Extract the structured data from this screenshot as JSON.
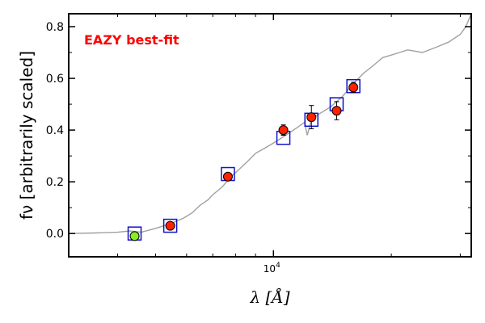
{
  "chart_data": {
    "type": "scatter",
    "title": "",
    "xlabel": "λ [Å]",
    "ylabel": "fν [arbitrarily scaled]",
    "x_scale": "log",
    "xlim": [
      3000,
      32000
    ],
    "ylim": [
      -0.09,
      0.85
    ],
    "x_tick_labels": [
      {
        "value": 10000,
        "label": "10",
        "sup": "4"
      }
    ],
    "y_ticks": [
      0.0,
      0.2,
      0.4,
      0.6,
      0.8
    ],
    "y_tick_labels": [
      "0.0",
      "0.2",
      "0.4",
      "0.6",
      "0.8"
    ],
    "annotation": {
      "text": "EAZY best-fit",
      "color": "#ff0000"
    },
    "colors": {
      "spectrum": "#a0a0a0",
      "photometry": "#ff2200",
      "green_point": "#88ee22",
      "model_box": "#1111cc"
    },
    "observed_points": [
      {
        "x": 4420,
        "y": -0.01,
        "err": 0.01,
        "color": "#88ee22"
      },
      {
        "x": 5450,
        "y": 0.03,
        "err": 0.01,
        "color": "#ff2200"
      },
      {
        "x": 7650,
        "y": 0.22,
        "err": 0.012,
        "color": "#ff2200"
      },
      {
        "x": 10600,
        "y": 0.4,
        "err": 0.02,
        "color": "#ff2200"
      },
      {
        "x": 12500,
        "y": 0.45,
        "err": 0.045,
        "color": "#ff2200"
      },
      {
        "x": 14500,
        "y": 0.475,
        "err": 0.035,
        "color": "#ff2200"
      },
      {
        "x": 16000,
        "y": 0.565,
        "err": 0.02,
        "color": "#ff2200"
      }
    ],
    "model_points": [
      {
        "x": 4420,
        "y": 0.0
      },
      {
        "x": 5450,
        "y": 0.03
      },
      {
        "x": 7650,
        "y": 0.23
      },
      {
        "x": 10600,
        "y": 0.37
      },
      {
        "x": 12500,
        "y": 0.44
      },
      {
        "x": 14500,
        "y": 0.5
      },
      {
        "x": 16000,
        "y": 0.57
      }
    ],
    "spectrum": {
      "x": [
        3000,
        3500,
        4000,
        4300,
        4600,
        5000,
        5500,
        5900,
        6200,
        6500,
        6800,
        7000,
        7400,
        7800,
        8200,
        8600,
        9000,
        9500,
        10000,
        10500,
        11000,
        11500,
        12000,
        12200,
        12500,
        13000,
        14000,
        15000,
        16000,
        17000,
        18000,
        19000,
        20000,
        21000,
        22000,
        24000,
        26000,
        28000,
        30000,
        31000,
        32000
      ],
      "y": [
        0.0,
        0.002,
        0.005,
        0.01,
        0.005,
        0.02,
        0.04,
        0.06,
        0.08,
        0.11,
        0.13,
        0.15,
        0.18,
        0.22,
        0.25,
        0.28,
        0.31,
        0.33,
        0.35,
        0.37,
        0.39,
        0.41,
        0.43,
        0.38,
        0.44,
        0.46,
        0.49,
        0.53,
        0.58,
        0.62,
        0.65,
        0.68,
        0.69,
        0.7,
        0.71,
        0.7,
        0.72,
        0.74,
        0.77,
        0.8,
        0.85
      ]
    }
  }
}
